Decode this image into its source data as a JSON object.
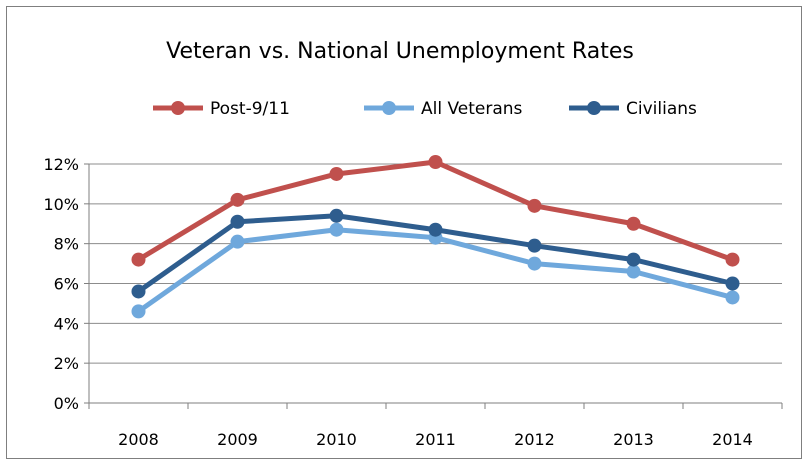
{
  "chart_data": {
    "type": "line",
    "title": "Veteran vs. National Unemployment Rates",
    "xlabel": "",
    "ylabel": "",
    "categories": [
      "2008",
      "2009",
      "2010",
      "2011",
      "2012",
      "2013",
      "2014"
    ],
    "ylim": [
      0,
      12
    ],
    "yticks": [
      0,
      2,
      4,
      6,
      8,
      10,
      12
    ],
    "ytick_labels": [
      "0%",
      "2%",
      "4%",
      "6%",
      "8%",
      "10%",
      "12%"
    ],
    "grid": true,
    "legend_position": "top",
    "series": [
      {
        "name": "Post-9/11",
        "color": "#c0504d",
        "values": [
          7.2,
          10.2,
          11.5,
          12.1,
          9.9,
          9.0,
          7.2
        ]
      },
      {
        "name": "All Veterans",
        "color": "#6fa8dc",
        "values": [
          4.6,
          8.1,
          8.7,
          8.3,
          7.0,
          6.6,
          5.3
        ]
      },
      {
        "name": "Civilians",
        "color": "#2e5d8e",
        "values": [
          5.6,
          9.1,
          9.4,
          8.7,
          7.9,
          7.2,
          6.0
        ]
      }
    ]
  }
}
